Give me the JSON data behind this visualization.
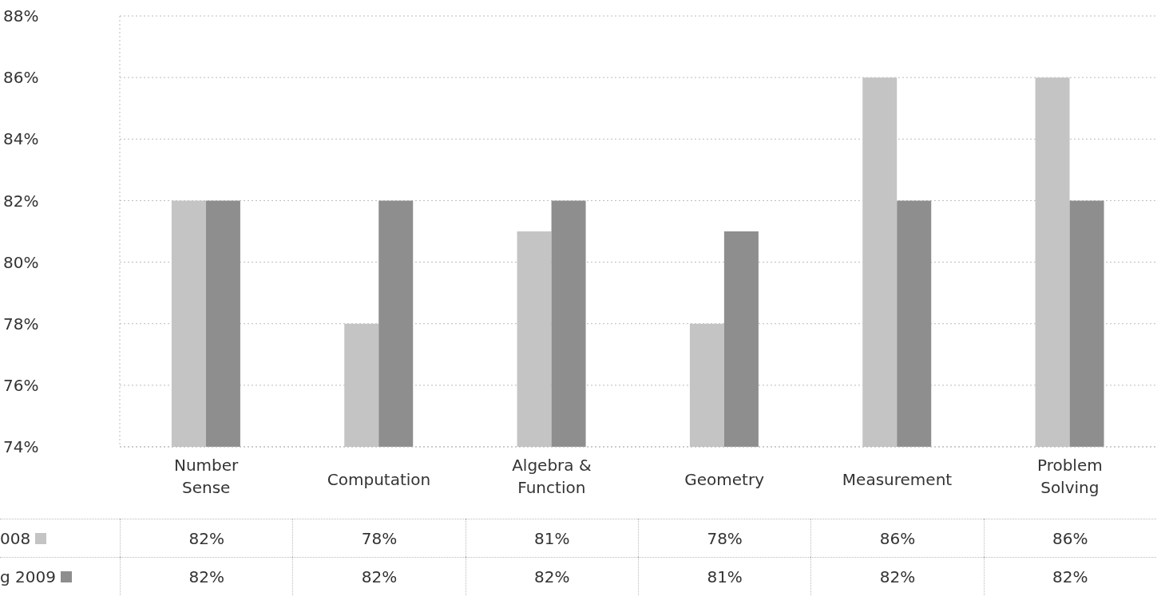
{
  "chart_data": {
    "type": "bar",
    "categories": [
      "Number Sense",
      "Computation",
      "Algebra & Function",
      "Geometry",
      "Measurement",
      "Problem Solving"
    ],
    "series": [
      {
        "name": "008",
        "color": "#c4c4c4",
        "values": [
          82,
          78,
          81,
          78,
          86,
          86
        ],
        "value_labels": [
          "82%",
          "78%",
          "81%",
          "78%",
          "86%",
          "86%"
        ]
      },
      {
        "name": "g 2009",
        "color": "#8e8e8e",
        "values": [
          82,
          82,
          82,
          81,
          82,
          82
        ],
        "value_labels": [
          "82%",
          "82%",
          "82%",
          "81%",
          "82%",
          "82%"
        ]
      }
    ],
    "ylim": [
      74,
      88
    ],
    "yticks": [
      {
        "value": 74,
        "label": "74%"
      },
      {
        "value": 76,
        "label": "76%"
      },
      {
        "value": 78,
        "label": "78%"
      },
      {
        "value": 80,
        "label": "80%"
      },
      {
        "value": 82,
        "label": "82%"
      },
      {
        "value": 84,
        "label": "84%"
      },
      {
        "value": 86,
        "label": "86%"
      },
      {
        "value": 88,
        "label": "88%"
      }
    ],
    "grid": "y",
    "legend": "bottom left"
  }
}
